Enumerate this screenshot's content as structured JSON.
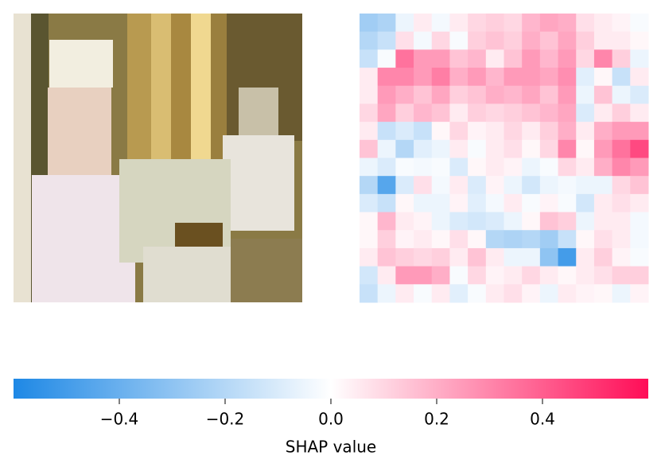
{
  "chart_data": {
    "type": "heatmap",
    "colorbar_label": "SHAP value",
    "colormap": [
      "#1e88e5",
      "#ffffff",
      "#ff0d57"
    ],
    "vlim": [
      -0.6,
      0.6
    ],
    "ticks": [
      {
        "value": -0.4,
        "label": "−0.4"
      },
      {
        "value": -0.2,
        "label": "−0.2"
      },
      {
        "value": 0,
        "label": "0.0"
      },
      0.2,
      0.4
    ],
    "z": [
      [
        -0.25,
        -0.22,
        -0.05,
        0.05,
        -0.03,
        0.05,
        0.1,
        0.12,
        0.1,
        0.18,
        0.22,
        0.2,
        0.08,
        0.05,
        0.03,
        -0.02
      ],
      [
        -0.2,
        -0.15,
        0.08,
        -0.03,
        0.1,
        -0.02,
        0.12,
        0.15,
        0.12,
        0.2,
        0.15,
        0.22,
        0.12,
        0.05,
        0.05,
        0.02
      ],
      [
        -0.15,
        -0.02,
        0.35,
        0.25,
        0.25,
        0.15,
        0.18,
        0.05,
        0.15,
        0.25,
        0.18,
        0.25,
        0.1,
        0.3,
        0.12,
        -0.05
      ],
      [
        0.05,
        0.3,
        0.3,
        0.25,
        0.32,
        0.2,
        0.25,
        0.18,
        0.25,
        0.25,
        0.22,
        0.28,
        -0.08,
        0.02,
        -0.15,
        0.05
      ],
      [
        0.05,
        0.25,
        0.2,
        0.15,
        0.22,
        0.12,
        0.15,
        0.2,
        0.18,
        0.22,
        0.15,
        0.25,
        -0.05,
        0.15,
        -0.05,
        -0.1
      ],
      [
        0.1,
        0.22,
        0.12,
        0.18,
        0.15,
        0.05,
        0.12,
        0.1,
        0.12,
        0.15,
        0.18,
        0.22,
        -0.1,
        0.05,
        0.12,
        0.05
      ],
      [
        0.05,
        -0.15,
        -0.1,
        -0.15,
        0.02,
        0.1,
        0.03,
        0.05,
        0.1,
        0.05,
        0.12,
        0.2,
        0.05,
        0.2,
        0.25,
        0.25
      ],
      [
        0.15,
        -0.05,
        -0.2,
        -0.08,
        -0.05,
        0.05,
        -0.02,
        0.05,
        0.08,
        0.02,
        0.1,
        0.3,
        0.02,
        0.25,
        0.35,
        0.45
      ],
      [
        -0.05,
        -0.1,
        -0.02,
        -0.03,
        -0.02,
        -0.1,
        0.02,
        0.05,
        0.03,
        -0.05,
        -0.02,
        0.1,
        0.05,
        0.2,
        0.3,
        0.25
      ],
      [
        -0.2,
        -0.45,
        -0.1,
        0.08,
        -0.03,
        0.05,
        -0.1,
        0.03,
        -0.05,
        -0.12,
        -0.05,
        -0.03,
        -0.05,
        -0.05,
        0.1,
        0.15
      ],
      [
        -0.1,
        -0.15,
        0.02,
        -0.05,
        -0.05,
        0.03,
        -0.08,
        -0.03,
        0.05,
        -0.02,
        0.03,
        -0.02,
        -0.12,
        0.05,
        0.08,
        0.05
      ],
      [
        0.02,
        0.18,
        0.05,
        0.03,
        -0.05,
        -0.1,
        -0.12,
        -0.1,
        -0.05,
        0.02,
        0.15,
        0.12,
        -0.05,
        0.05,
        0.05,
        -0.03
      ],
      [
        0.02,
        0.12,
        0.03,
        0.05,
        0.02,
        0.08,
        0.02,
        -0.2,
        -0.22,
        -0.2,
        -0.25,
        -0.15,
        0.02,
        0.08,
        0.05,
        -0.03
      ],
      [
        0.05,
        0.15,
        0.12,
        0.1,
        0.12,
        0.05,
        0.15,
        0.05,
        -0.05,
        -0.05,
        -0.3,
        -0.5,
        0.05,
        0.12,
        0.03,
        -0.02
      ],
      [
        -0.12,
        0.05,
        0.25,
        0.25,
        0.2,
        -0.02,
        0.1,
        0.03,
        0.05,
        0.1,
        0.05,
        0.02,
        0.05,
        0.08,
        0.12,
        0.12
      ],
      [
        -0.15,
        -0.05,
        0.05,
        -0.02,
        0.05,
        -0.08,
        -0.02,
        0.05,
        0.08,
        0.03,
        -0.05,
        0.05,
        0.03,
        0.02,
        -0.05,
        0.03
      ]
    ]
  }
}
